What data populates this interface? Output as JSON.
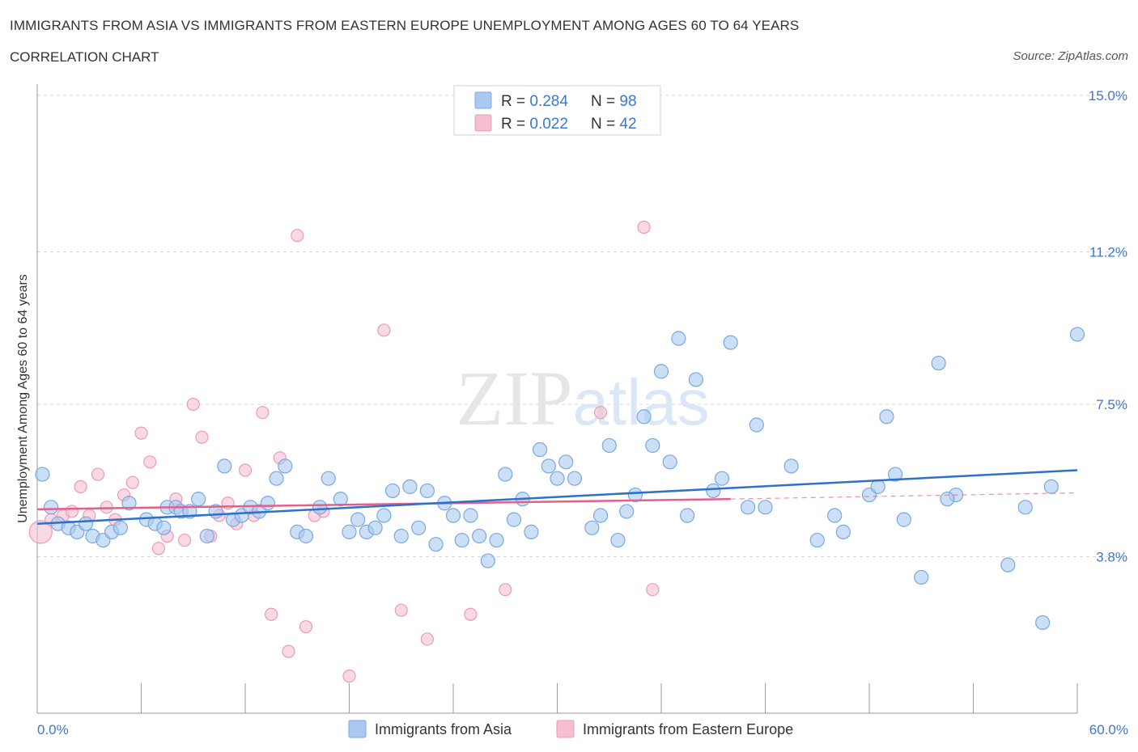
{
  "title": "IMMIGRANTS FROM ASIA VS IMMIGRANTS FROM EASTERN EUROPE UNEMPLOYMENT AMONG AGES 60 TO 64 YEARS",
  "subtitle": "CORRELATION CHART",
  "source": "Source: ZipAtlas.com",
  "watermark": "ZIPatlas",
  "colors": {
    "blue_fill": "#a9c9f0",
    "blue_stroke": "#7aa8e0",
    "blue_line": "#2f6fce",
    "pink_fill": "#f5bfd0",
    "pink_stroke": "#ec9bb5",
    "pink_line": "#e2608b",
    "value_text": "#3b78d0",
    "grid": "#d8d8d8"
  },
  "chart_data": {
    "type": "scatter",
    "xlabel": "",
    "ylabel": "Unemployment Among Ages 60 to 64 years",
    "xlim": [
      0,
      60
    ],
    "ylim": [
      0,
      15
    ],
    "x_tick_labels": [
      "0.0%",
      "60.0%"
    ],
    "y_ticks": [
      3.8,
      7.5,
      11.2,
      15.0
    ],
    "y_tick_labels": [
      "3.8%",
      "7.5%",
      "11.2%",
      "15.0%"
    ],
    "grid": "horizontal dashed",
    "legend_position": "top-center",
    "stats": [
      {
        "r_label": "R = ",
        "r_value": "0.284",
        "n_label": "N = ",
        "n_value": "98"
      },
      {
        "r_label": "R = ",
        "r_value": "0.022",
        "n_label": "N = ",
        "n_value": "42"
      }
    ],
    "series": [
      {
        "name": "Immigrants from Asia",
        "color": "blue",
        "trend": {
          "x": [
            0,
            60
          ],
          "y": [
            4.6,
            5.9
          ]
        },
        "points": [
          [
            0.3,
            5.8
          ],
          [
            0.8,
            5.0
          ],
          [
            1.2,
            4.6
          ],
          [
            1.8,
            4.5
          ],
          [
            2.3,
            4.4
          ],
          [
            2.8,
            4.6
          ],
          [
            3.2,
            4.3
          ],
          [
            3.8,
            4.2
          ],
          [
            4.3,
            4.4
          ],
          [
            4.8,
            4.5
          ],
          [
            5.3,
            5.1
          ],
          [
            6.3,
            4.7
          ],
          [
            6.8,
            4.6
          ],
          [
            7.3,
            4.5
          ],
          [
            7.5,
            5.0
          ],
          [
            8.0,
            5.0
          ],
          [
            8.3,
            4.9
          ],
          [
            8.8,
            4.9
          ],
          [
            9.3,
            5.2
          ],
          [
            9.8,
            4.3
          ],
          [
            10.3,
            4.9
          ],
          [
            10.8,
            6.0
          ],
          [
            11.3,
            4.7
          ],
          [
            11.8,
            4.8
          ],
          [
            12.3,
            5.0
          ],
          [
            12.8,
            4.9
          ],
          [
            13.3,
            5.1
          ],
          [
            13.8,
            5.7
          ],
          [
            14.3,
            6.0
          ],
          [
            15.0,
            4.4
          ],
          [
            15.5,
            4.3
          ],
          [
            16.3,
            5.0
          ],
          [
            16.8,
            5.7
          ],
          [
            17.5,
            5.2
          ],
          [
            18.0,
            4.4
          ],
          [
            18.5,
            4.7
          ],
          [
            19.0,
            4.4
          ],
          [
            19.5,
            4.5
          ],
          [
            20.0,
            4.8
          ],
          [
            20.5,
            5.4
          ],
          [
            21.0,
            4.3
          ],
          [
            21.5,
            5.5
          ],
          [
            22.0,
            4.5
          ],
          [
            22.5,
            5.4
          ],
          [
            23.0,
            4.1
          ],
          [
            23.5,
            5.1
          ],
          [
            24.0,
            4.8
          ],
          [
            24.5,
            4.2
          ],
          [
            25.0,
            4.8
          ],
          [
            25.5,
            4.3
          ],
          [
            26.0,
            3.7
          ],
          [
            26.5,
            4.2
          ],
          [
            27.0,
            5.8
          ],
          [
            27.5,
            4.7
          ],
          [
            28.0,
            5.2
          ],
          [
            28.5,
            4.4
          ],
          [
            29.0,
            6.4
          ],
          [
            29.5,
            6.0
          ],
          [
            30.0,
            5.7
          ],
          [
            30.5,
            6.1
          ],
          [
            31.0,
            5.7
          ],
          [
            32.0,
            4.5
          ],
          [
            32.5,
            4.8
          ],
          [
            33.0,
            6.5
          ],
          [
            33.5,
            4.2
          ],
          [
            34.0,
            4.9
          ],
          [
            34.5,
            5.3
          ],
          [
            35.0,
            7.2
          ],
          [
            35.5,
            6.5
          ],
          [
            36.0,
            8.3
          ],
          [
            36.5,
            6.1
          ],
          [
            37.0,
            9.1
          ],
          [
            37.5,
            4.8
          ],
          [
            38.0,
            8.1
          ],
          [
            39.0,
            5.4
          ],
          [
            39.5,
            5.7
          ],
          [
            40.0,
            9.0
          ],
          [
            41.0,
            5.0
          ],
          [
            41.5,
            7.0
          ],
          [
            42.0,
            5.0
          ],
          [
            43.5,
            6.0
          ],
          [
            45.0,
            4.2
          ],
          [
            46.0,
            4.8
          ],
          [
            46.5,
            4.4
          ],
          [
            48.0,
            5.3
          ],
          [
            48.5,
            5.5
          ],
          [
            49.0,
            7.2
          ],
          [
            49.5,
            5.8
          ],
          [
            50.0,
            4.7
          ],
          [
            51.0,
            3.3
          ],
          [
            52.0,
            8.5
          ],
          [
            53.0,
            5.3
          ],
          [
            56.0,
            3.6
          ],
          [
            57.0,
            5.0
          ],
          [
            58.0,
            2.2
          ],
          [
            58.5,
            5.5
          ],
          [
            60.0,
            9.2
          ],
          [
            52.5,
            5.2
          ]
        ]
      },
      {
        "name": "Immigrants from Eastern Europe",
        "color": "pink",
        "trend": {
          "x": [
            0,
            40
          ],
          "y": [
            4.95,
            5.2
          ]
        },
        "trend_dashed": {
          "x": [
            40,
            60
          ],
          "y": [
            5.2,
            5.35
          ]
        },
        "points": [
          [
            0.2,
            4.4
          ],
          [
            0.8,
            4.7
          ],
          [
            1.5,
            4.8
          ],
          [
            2.0,
            4.9
          ],
          [
            2.5,
            5.5
          ],
          [
            3.0,
            4.8
          ],
          [
            3.5,
            5.8
          ],
          [
            4.0,
            5.0
          ],
          [
            4.5,
            4.7
          ],
          [
            5.0,
            5.3
          ],
          [
            5.5,
            5.6
          ],
          [
            6.0,
            6.8
          ],
          [
            6.5,
            6.1
          ],
          [
            7.0,
            4.0
          ],
          [
            7.5,
            4.3
          ],
          [
            8.0,
            5.2
          ],
          [
            8.5,
            4.2
          ],
          [
            9.0,
            7.5
          ],
          [
            9.5,
            6.7
          ],
          [
            10.0,
            4.3
          ],
          [
            10.5,
            4.8
          ],
          [
            11.0,
            5.1
          ],
          [
            11.5,
            4.6
          ],
          [
            12.0,
            5.9
          ],
          [
            12.5,
            4.8
          ],
          [
            13.0,
            7.3
          ],
          [
            13.5,
            2.4
          ],
          [
            14.0,
            6.2
          ],
          [
            14.5,
            1.5
          ],
          [
            15.0,
            11.6
          ],
          [
            15.5,
            2.1
          ],
          [
            16.0,
            4.8
          ],
          [
            16.5,
            4.9
          ],
          [
            18.0,
            0.9
          ],
          [
            20.0,
            9.3
          ],
          [
            21.0,
            2.5
          ],
          [
            22.5,
            1.8
          ],
          [
            25.0,
            2.4
          ],
          [
            27.0,
            3.0
          ],
          [
            32.5,
            7.3
          ],
          [
            35.0,
            11.8
          ],
          [
            35.5,
            3.0
          ]
        ]
      }
    ]
  }
}
